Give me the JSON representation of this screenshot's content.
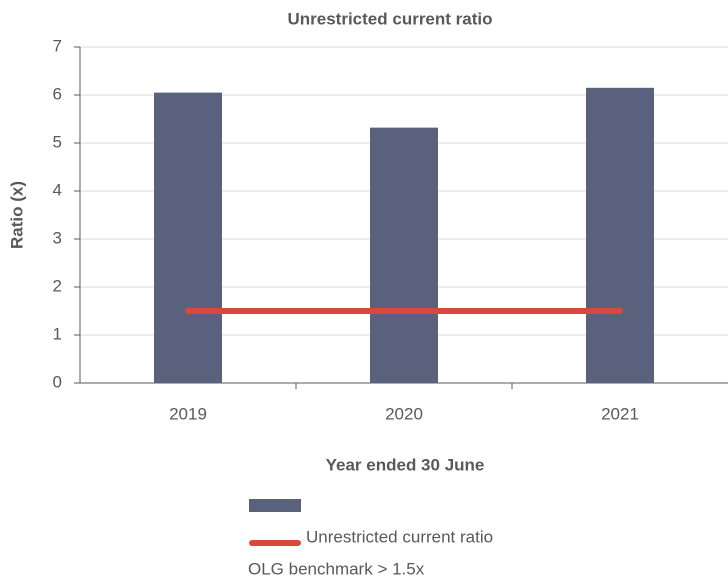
{
  "chart_data": {
    "type": "bar",
    "title": "Unrestricted current ratio",
    "y_label": "Ratio (x)",
    "x_label": "Year ended 30 June",
    "categories": [
      "2019",
      "2020",
      "2021"
    ],
    "series": [
      {
        "name": "Unrestricted current ratio",
        "type": "bar",
        "color": "#5a617d",
        "values": [
          6.05,
          5.32,
          6.15
        ]
      },
      {
        "name": "OLG benchmark > 1.5x",
        "type": "line",
        "color": "#d9473f",
        "values": [
          1.5,
          1.5,
          1.5
        ]
      }
    ],
    "ylim": [
      0,
      7
    ],
    "yticks": [
      0,
      1,
      2,
      3,
      4,
      5,
      6,
      7
    ],
    "grid": true
  }
}
